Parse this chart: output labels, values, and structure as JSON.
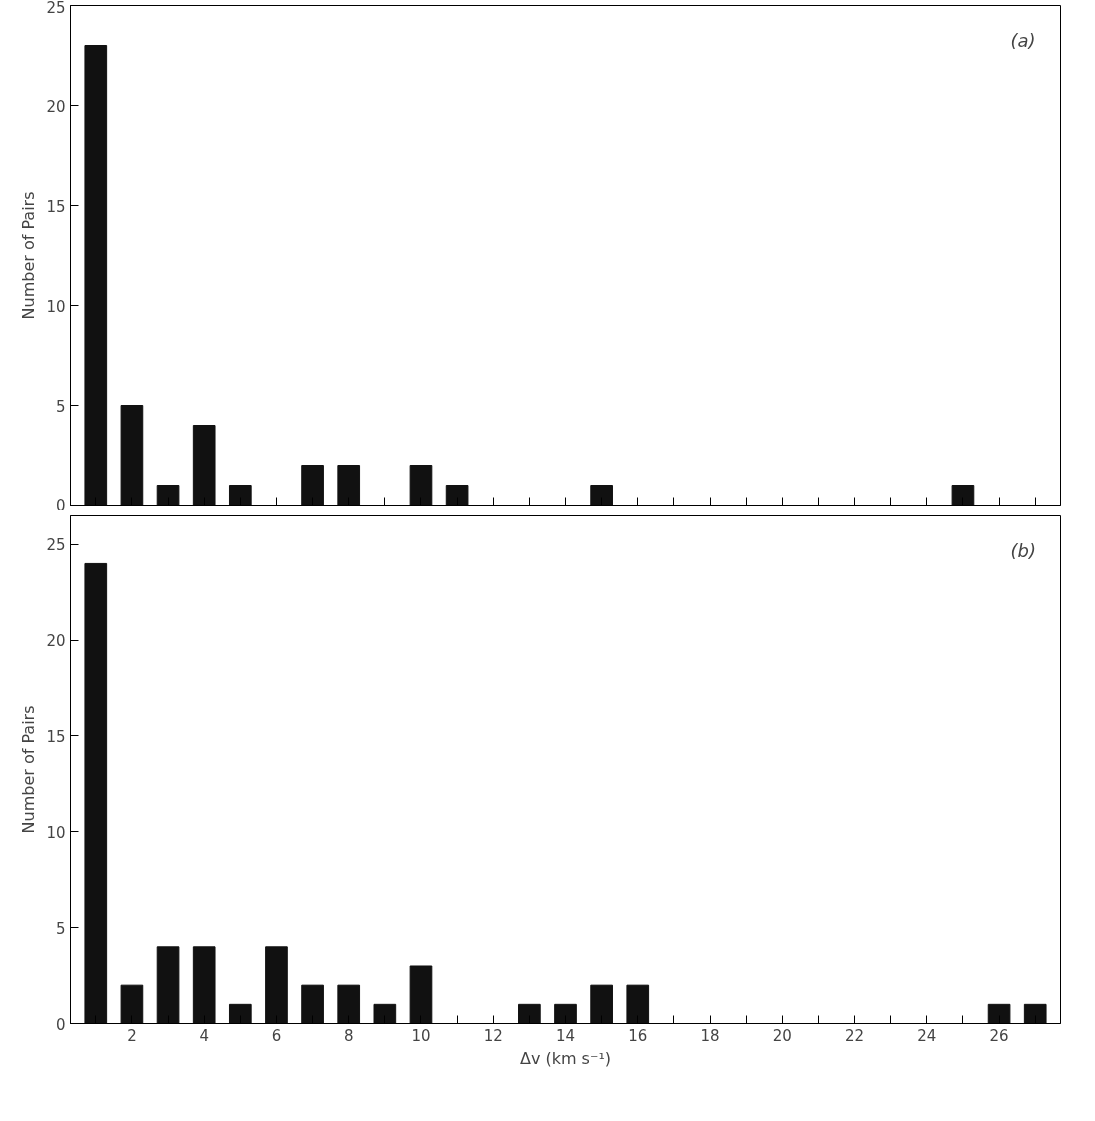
{
  "chart_data": [
    {
      "type": "bar",
      "x": [
        1,
        2,
        3,
        4,
        5,
        7,
        8,
        10,
        11,
        15,
        25
      ],
      "values": [
        23,
        5,
        1,
        4,
        1,
        2,
        2,
        2,
        1,
        1,
        1
      ],
      "color": "#111111",
      "ylabel": "Number of Pairs",
      "xlim": [
        0.3,
        27.7
      ],
      "ylim": [
        0,
        25
      ],
      "yticks": [
        0,
        5,
        10,
        15,
        20,
        25
      ],
      "xticks": [
        {
          "value": 1,
          "label": null
        },
        2,
        {
          "value": 3,
          "label": null
        },
        4,
        {
          "value": 5,
          "label": null
        },
        6,
        {
          "value": 7,
          "label": null
        },
        8,
        {
          "value": 9,
          "label": null
        },
        10,
        {
          "value": 11,
          "label": null
        },
        12,
        {
          "value": 13,
          "label": null
        },
        14,
        {
          "value": 15,
          "label": null
        },
        16,
        {
          "value": 17,
          "label": null
        },
        18,
        {
          "value": 19,
          "label": null
        },
        20,
        {
          "value": 21,
          "label": null
        },
        22,
        {
          "value": 23,
          "label": null
        },
        24,
        {
          "value": 25,
          "label": null
        },
        26,
        {
          "value": 27,
          "label": null
        }
      ],
      "tick_labels": "y",
      "annotations": [
        "(a)"
      ]
    },
    {
      "type": "bar",
      "x": [
        1,
        2,
        3,
        4,
        5,
        6,
        7,
        8,
        9,
        10,
        13,
        14,
        15,
        16,
        26,
        27
      ],
      "values": [
        24,
        2,
        4,
        4,
        1,
        4,
        2,
        2,
        1,
        3,
        1,
        1,
        2,
        2,
        1,
        1
      ],
      "color": "#111111",
      "ylabel": "Number of Pairs",
      "xlabel": "Δv (km s⁻¹)",
      "xlim": [
        0.3,
        27.7
      ],
      "ylim": [
        0,
        26.5
      ],
      "yticks": [
        0,
        5,
        10,
        15,
        20,
        25
      ],
      "xticks": [
        {
          "value": 1,
          "label": null
        },
        2,
        {
          "value": 3,
          "label": null
        },
        4,
        {
          "value": 5,
          "label": null
        },
        6,
        {
          "value": 7,
          "label": null
        },
        8,
        {
          "value": 9,
          "label": null
        },
        10,
        {
          "value": 11,
          "label": null
        },
        12,
        {
          "value": 13,
          "label": null
        },
        14,
        {
          "value": 15,
          "label": null
        },
        16,
        {
          "value": 17,
          "label": null
        },
        18,
        {
          "value": 19,
          "label": null
        },
        20,
        {
          "value": 21,
          "label": null
        },
        22,
        {
          "value": 23,
          "label": null
        },
        24,
        {
          "value": 25,
          "label": null
        },
        26,
        {
          "value": 27,
          "label": null
        }
      ],
      "annotations": [
        "(b)"
      ]
    }
  ]
}
